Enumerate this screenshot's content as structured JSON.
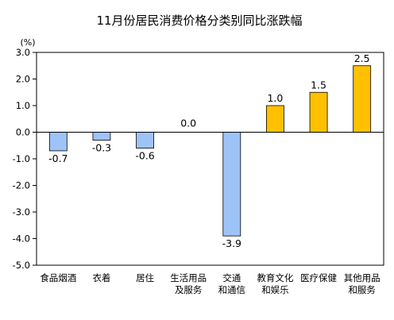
{
  "chart_data": {
    "type": "bar",
    "title": "11月份居民消费价格分类别同比涨跌幅",
    "unit_label": "(%)",
    "ylim": [
      -5.0,
      3.0
    ],
    "yticks": [
      "3.0",
      "2.0",
      "1.0",
      "0.0",
      "-1.0",
      "-2.0",
      "-3.0",
      "-4.0",
      "-5.0"
    ],
    "grid": false,
    "categories": [
      [
        "食品烟酒"
      ],
      [
        "衣着"
      ],
      [
        "居住"
      ],
      [
        "生活用品",
        "及服务"
      ],
      [
        "交通",
        "和通信"
      ],
      [
        "教育文化",
        "和娱乐"
      ],
      [
        "医疗保健"
      ],
      [
        "其他用品",
        "和服务"
      ]
    ],
    "values": [
      -0.7,
      -0.3,
      -0.6,
      0.0,
      -3.9,
      1.0,
      1.5,
      2.5
    ],
    "value_labels": [
      "-0.7",
      "-0.3",
      "-0.6",
      "0.0",
      "-3.9",
      "1.0",
      "1.5",
      "2.5"
    ],
    "colors": {
      "positive": "#FFC000",
      "negative": "#9DC3F7",
      "bar_border": "#000000"
    }
  }
}
